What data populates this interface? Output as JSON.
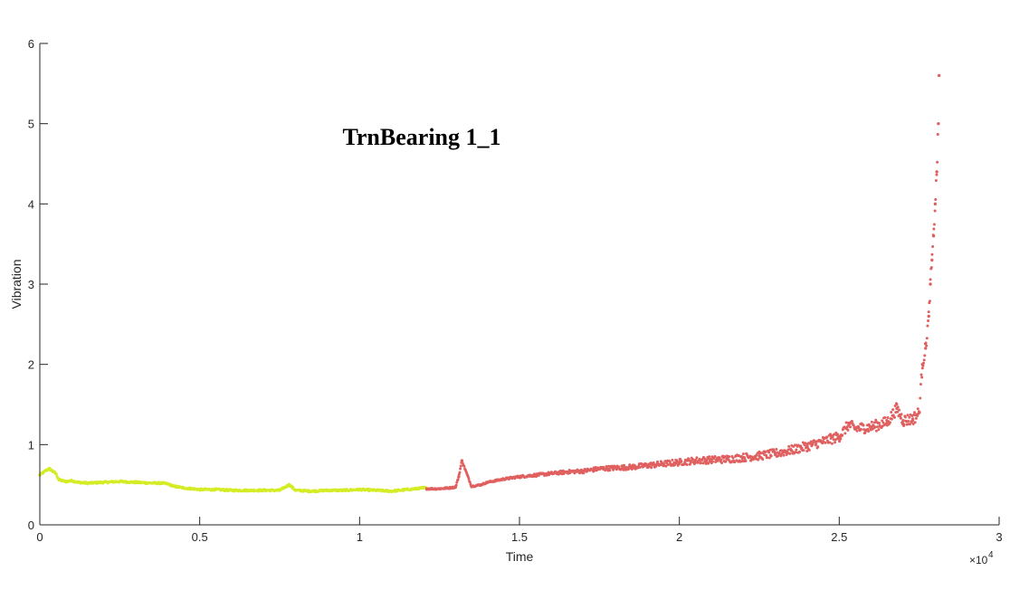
{
  "chart_data": {
    "type": "scatter",
    "title": "TrnBearing 1_1",
    "xlabel": "Time",
    "ylabel": "Vibration",
    "x_exponent_label": "×10",
    "x_exponent_power": "4",
    "xlim": [
      0,
      3
    ],
    "ylim": [
      0,
      6
    ],
    "x_scale_note": "x values in units of 10^4",
    "xticks": [
      0,
      0.5,
      1,
      1.5,
      2,
      2.5,
      3
    ],
    "xtick_labels": [
      "0",
      "0.5",
      "1",
      "1.5",
      "2",
      "2.5",
      "3"
    ],
    "yticks": [
      0,
      1,
      2,
      3,
      4,
      5,
      6
    ],
    "ytick_labels": [
      "0",
      "1",
      "2",
      "3",
      "4",
      "5",
      "6"
    ],
    "grid": false,
    "series": [
      {
        "color": "#d4ec24",
        "x_range": [
          0,
          1.21
        ],
        "points": [
          [
            0.0,
            0.62
          ],
          [
            0.01,
            0.65
          ],
          [
            0.02,
            0.68
          ],
          [
            0.03,
            0.7
          ],
          [
            0.04,
            0.67
          ],
          [
            0.05,
            0.64
          ],
          [
            0.06,
            0.56
          ],
          [
            0.08,
            0.54
          ],
          [
            0.1,
            0.55
          ],
          [
            0.12,
            0.53
          ],
          [
            0.15,
            0.52
          ],
          [
            0.2,
            0.53
          ],
          [
            0.25,
            0.54
          ],
          [
            0.3,
            0.53
          ],
          [
            0.35,
            0.52
          ],
          [
            0.38,
            0.52
          ],
          [
            0.4,
            0.51
          ],
          [
            0.42,
            0.48
          ],
          [
            0.45,
            0.46
          ],
          [
            0.5,
            0.44
          ],
          [
            0.55,
            0.44
          ],
          [
            0.6,
            0.43
          ],
          [
            0.65,
            0.43
          ],
          [
            0.7,
            0.43
          ],
          [
            0.75,
            0.43
          ],
          [
            0.78,
            0.5
          ],
          [
            0.8,
            0.43
          ],
          [
            0.85,
            0.42
          ],
          [
            0.9,
            0.43
          ],
          [
            0.95,
            0.43
          ],
          [
            1.0,
            0.44
          ],
          [
            1.05,
            0.43
          ],
          [
            1.1,
            0.42
          ],
          [
            1.15,
            0.44
          ],
          [
            1.2,
            0.46
          ]
        ]
      },
      {
        "color": "#e06060",
        "x_range": [
          1.21,
          2.81
        ],
        "points": [
          [
            1.21,
            0.45
          ],
          [
            1.25,
            0.45
          ],
          [
            1.28,
            0.46
          ],
          [
            1.3,
            0.47
          ],
          [
            1.31,
            0.6
          ],
          [
            1.32,
            0.8
          ],
          [
            1.35,
            0.48
          ],
          [
            1.38,
            0.5
          ],
          [
            1.4,
            0.53
          ],
          [
            1.45,
            0.57
          ],
          [
            1.5,
            0.6
          ],
          [
            1.55,
            0.62
          ],
          [
            1.6,
            0.64
          ],
          [
            1.65,
            0.66
          ],
          [
            1.7,
            0.67
          ],
          [
            1.75,
            0.7
          ],
          [
            1.8,
            0.71
          ],
          [
            1.85,
            0.72
          ],
          [
            1.9,
            0.74
          ],
          [
            1.95,
            0.76
          ],
          [
            2.0,
            0.78
          ],
          [
            2.05,
            0.8
          ],
          [
            2.1,
            0.81
          ],
          [
            2.15,
            0.82
          ],
          [
            2.2,
            0.84
          ],
          [
            2.25,
            0.86
          ],
          [
            2.3,
            0.89
          ],
          [
            2.35,
            0.93
          ],
          [
            2.4,
            0.98
          ],
          [
            2.45,
            1.04
          ],
          [
            2.5,
            1.1
          ],
          [
            2.53,
            1.25
          ],
          [
            2.55,
            1.2
          ],
          [
            2.6,
            1.22
          ],
          [
            2.65,
            1.28
          ],
          [
            2.68,
            1.45
          ],
          [
            2.7,
            1.3
          ],
          [
            2.73,
            1.32
          ],
          [
            2.75,
            1.4
          ],
          [
            2.76,
            2.0
          ],
          [
            2.77,
            2.2
          ],
          [
            2.78,
            2.6
          ],
          [
            2.785,
            3.0
          ],
          [
            2.79,
            3.3
          ],
          [
            2.795,
            3.6
          ],
          [
            2.8,
            4.0
          ],
          [
            2.805,
            4.4
          ],
          [
            2.81,
            5.0
          ],
          [
            2.812,
            5.6
          ]
        ]
      }
    ]
  }
}
